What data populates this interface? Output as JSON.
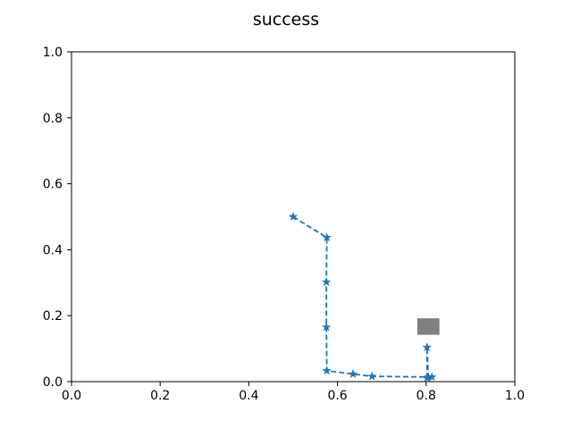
{
  "chart_data": {
    "type": "line",
    "title": "success",
    "xlabel": "",
    "ylabel": "",
    "xlim": [
      0.0,
      1.0
    ],
    "ylim": [
      0.0,
      1.0
    ],
    "x_ticks": [
      "0.0",
      "0.2",
      "0.4",
      "0.6",
      "0.8",
      "1.0"
    ],
    "y_ticks": [
      "0.0",
      "0.2",
      "0.4",
      "0.6",
      "0.8",
      "1.0"
    ],
    "grid": false,
    "series": [
      {
        "x": [
          0.5,
          0.576,
          0.575,
          0.575,
          0.576,
          0.635,
          0.678,
          0.805,
          0.802,
          0.802,
          0.813
        ],
        "y": [
          0.5,
          0.437,
          0.302,
          0.165,
          0.033,
          0.023,
          0.016,
          0.014,
          0.104,
          0.011,
          0.014
        ],
        "color": "#1f77b4",
        "linestyle": "dashed",
        "marker": "star"
      }
    ],
    "goal_marker": {
      "x": 0.805,
      "y": 0.167,
      "width": 0.05,
      "height": 0.05,
      "color": "#808080",
      "shape": "square"
    }
  }
}
